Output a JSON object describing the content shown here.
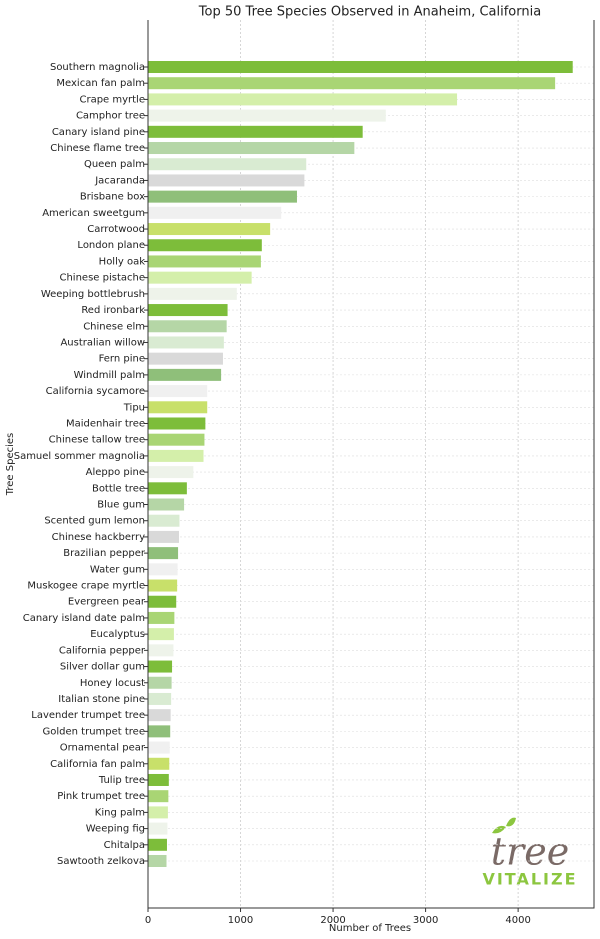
{
  "chart_data": {
    "type": "barh",
    "title": "Top 50 Tree Species Observed in Anaheim, California",
    "x_label": "Number of Trees",
    "y_label": "Tree Species",
    "categories": [
      "Southern magnolia",
      "Mexican fan palm",
      "Crape myrtle",
      "Camphor tree",
      "Canary island pine",
      "Chinese flame tree",
      "Queen palm",
      "Jacaranda",
      "Brisbane box",
      "American sweetgum",
      "Carrotwood",
      "London plane",
      "Holly oak",
      "Chinese pistache",
      "Weeping bottlebrush",
      "Red ironbark",
      "Chinese elm",
      "Australian willow",
      "Fern pine",
      "Windmill palm",
      "California sycamore",
      "Tipu",
      "Maidenhair tree",
      "Chinese tallow tree",
      "Samuel sommer magnolia",
      "Aleppo pine",
      "Bottle tree",
      "Blue gum",
      "Scented gum lemon",
      "Chinese hackberry",
      "Brazilian pepper",
      "Water gum",
      "Muskogee crape myrtle",
      "Evergreen pear",
      "Canary island date palm",
      "Eucalyptus",
      "California pepper",
      "Silver dollar gum",
      "Honey locust",
      "Italian stone pine",
      "Lavender trumpet tree",
      "Golden trumpet tree",
      "Ornamental pear",
      "California fan palm",
      "Tulip tree",
      "Pink trumpet tree",
      "King palm",
      "Weeping fig",
      "Chitalpa",
      "Sawtooth zelkova"
    ],
    "values": [
      4590,
      4400,
      3340,
      2570,
      2320,
      2230,
      1710,
      1690,
      1610,
      1440,
      1320,
      1230,
      1220,
      1120,
      960,
      860,
      850,
      820,
      810,
      790,
      640,
      640,
      620,
      610,
      600,
      490,
      420,
      390,
      340,
      335,
      325,
      320,
      315,
      305,
      285,
      280,
      275,
      260,
      255,
      250,
      245,
      240,
      235,
      230,
      225,
      220,
      215,
      210,
      205,
      200
    ],
    "colors": [
      "#7dbd3a",
      "#a9d574",
      "#d4efaa",
      "#eef3ea",
      "#7dbd3a",
      "#b5d6a6",
      "#d9ebd2",
      "#d9d9d9",
      "#8fbf7a",
      "#f0f0f0",
      "#c8e06a"
    ],
    "xlim": [
      0,
      4820
    ],
    "xticks": [
      0,
      1000,
      2000,
      3000,
      4000
    ],
    "grid": true
  },
  "logo": {
    "name": "tree",
    "tagline": "VITALIZE"
  }
}
